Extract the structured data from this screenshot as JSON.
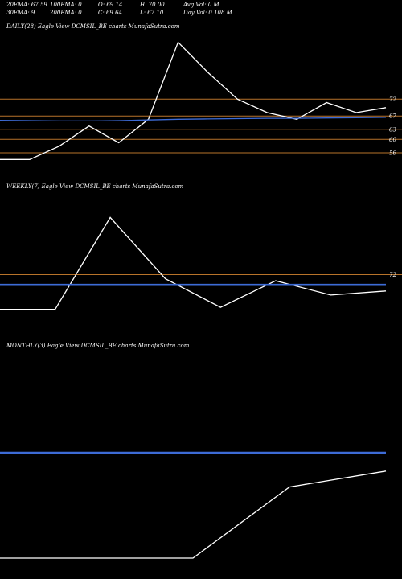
{
  "header": {
    "row1": [
      "20EMA: 67.59",
      "100EMA: 0",
      "O: 69.14",
      "H: 70.00",
      "Avg Vol: 0  M"
    ],
    "row2": [
      "30EMA: 9",
      "200EMA: 0",
      "C: 69.64",
      "L: 67.10",
      "Day Vol: 0.108 M"
    ]
  },
  "colors": {
    "price": "#ffffff",
    "ema": "#3d6bd6",
    "level": "#b8732a"
  },
  "chart_data": [
    {
      "type": "line",
      "title": "DAILY(28) Eagle  View  DCMSIL_BE charts MunafaSutra.com",
      "y_scale": "price",
      "ylim": [
        50,
        92
      ],
      "x": [
        0,
        1,
        2,
        3,
        4,
        5,
        6,
        7,
        8,
        9,
        10,
        11,
        12,
        13
      ],
      "series": [
        {
          "role": "price",
          "values": [
            54,
            54,
            58,
            64,
            59,
            66,
            89,
            80,
            72,
            68,
            66,
            71,
            68,
            69.5
          ]
        },
        {
          "role": "ema",
          "values": [
            65.7,
            65.6,
            65.5,
            65.5,
            65.6,
            65.8,
            66.0,
            66.1,
            66.2,
            66.3,
            66.3,
            66.4,
            66.5,
            66.6
          ]
        }
      ],
      "levels": [
        72,
        67,
        63,
        60,
        56
      ],
      "level_labels": [
        "72",
        "67",
        "63",
        "60",
        "56"
      ]
    },
    {
      "type": "line",
      "title": "WEEKLY(7) Eagle  View  DCMSIL_BE charts MunafaSutra.com",
      "y_scale": "price",
      "ylim": [
        45,
        112
      ],
      "x": [
        0,
        1,
        2,
        3,
        4,
        5,
        6,
        7
      ],
      "series": [
        {
          "role": "price",
          "values": [
            55,
            55,
            100,
            70,
            56,
            69,
            62,
            64
          ]
        },
        {
          "role": "ema",
          "values": [
            67.0,
            67.0,
            67.0,
            67.0,
            67.0,
            67.0,
            67.0,
            67.0
          ]
        }
      ],
      "levels": [
        72
      ],
      "level_labels": [
        "72"
      ]
    },
    {
      "type": "line",
      "title": "MONTHLY(3) Eagle  View  DCMSIL_BE charts MunafaSutra.com",
      "y_scale": "price",
      "ylim": [
        48,
        96
      ],
      "x": [
        0,
        1,
        2,
        3,
        4
      ],
      "series": [
        {
          "role": "price",
          "values": [
            50,
            50,
            50,
            66,
            69.6
          ]
        },
        {
          "role": "ema",
          "values": [
            73.7,
            73.7,
            73.7,
            73.7,
            73.7
          ]
        }
      ],
      "levels": [],
      "level_labels": []
    }
  ]
}
